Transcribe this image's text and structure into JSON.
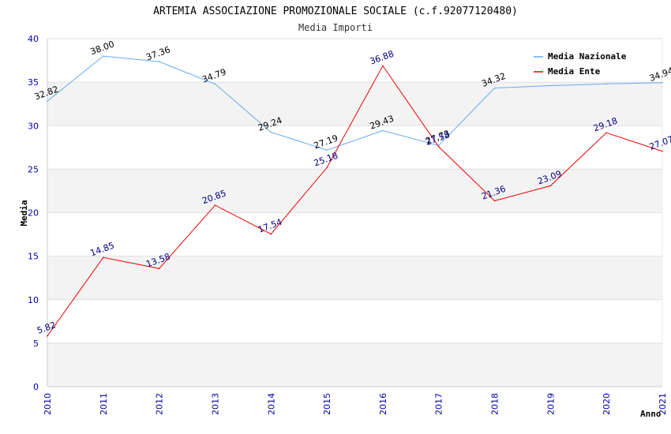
{
  "chart_data": {
    "type": "line",
    "title": "ARTEMIA ASSOCIAZIONE PROMOZIONALE SOCIALE (c.f.92077120480)",
    "subtitle": "Media Importi",
    "xlabel": "Anno",
    "ylabel": "Media",
    "ylim": [
      0,
      40
    ],
    "yticks": [
      "0",
      "5",
      "10",
      "15",
      "20",
      "25",
      "30",
      "35",
      "40"
    ],
    "categories": [
      "2010",
      "2011",
      "2012",
      "2013",
      "2014",
      "2015",
      "2016",
      "2017",
      "2018",
      "2019",
      "2020",
      "2021"
    ],
    "grid": true,
    "legend_position": "top-right",
    "series": [
      {
        "name": "Media Nazionale",
        "color": "#66aaee",
        "label_color": "#000000",
        "values": [
          32.82,
          38.0,
          37.36,
          34.79,
          29.24,
          27.19,
          29.43,
          27.73,
          34.32,
          34.6,
          34.8,
          34.94
        ],
        "labels": [
          "32.82",
          "38.00",
          "37.36",
          "34.79",
          "29.24",
          "27.19",
          "29.43",
          "27.73",
          "34.32",
          null,
          null,
          "34.94"
        ]
      },
      {
        "name": "Media Ente",
        "color": "#ee0000",
        "label_color": "#000088",
        "values": [
          5.82,
          14.85,
          13.58,
          20.85,
          17.54,
          25.18,
          36.88,
          27.58,
          21.36,
          23.09,
          29.18,
          27.07
        ],
        "labels": [
          "5.82",
          "14.85",
          "13.58",
          "20.85",
          "17.54",
          "25.18",
          "36.88",
          "27.58",
          "21.36",
          "23.09",
          "29.18",
          "27.07"
        ]
      }
    ]
  }
}
